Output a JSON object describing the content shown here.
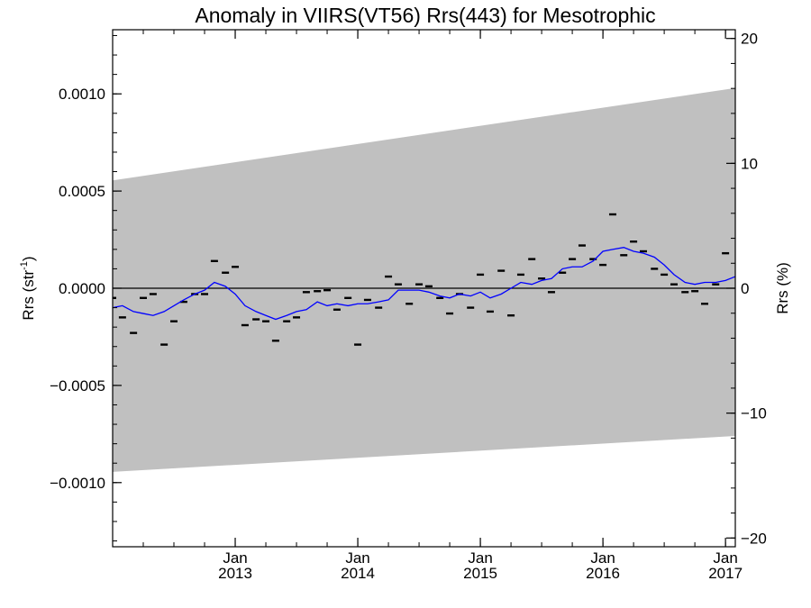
{
  "chart_data": {
    "type": "line",
    "title": "Anomaly in VIIRS(VT56) Rrs(443) for Mesotrophic",
    "ylabel_left": {
      "main": "Rrs (str",
      "sup": "-1",
      "tail": ")"
    },
    "ylabel_right": "Rrs (%)",
    "ylim_left": [
      -0.00133,
      0.00133
    ],
    "ylim_right": [
      -20.7,
      20.7
    ],
    "xlim": [
      2012.0,
      2017.08
    ],
    "x_ticks": [
      {
        "value": 2013.0,
        "month": "Jan",
        "year": "2013"
      },
      {
        "value": 2014.0,
        "month": "Jan",
        "year": "2014"
      },
      {
        "value": 2015.0,
        "month": "Jan",
        "year": "2015"
      },
      {
        "value": 2016.0,
        "month": "Jan",
        "year": "2016"
      },
      {
        "value": 2017.0,
        "month": "Jan",
        "year": "2017"
      }
    ],
    "y_ticks_left": [
      {
        "value": 0.001,
        "label": "0.0010"
      },
      {
        "value": 0.0005,
        "label": "0.0005"
      },
      {
        "value": 0.0,
        "label": "0.0000"
      },
      {
        "value": -0.0005,
        "label": "−0.0005"
      },
      {
        "value": -0.001,
        "label": "−0.0010"
      }
    ],
    "y_ticks_right": [
      {
        "value": 20,
        "label": "20"
      },
      {
        "value": 10,
        "label": "10"
      },
      {
        "value": 0,
        "label": "0"
      },
      {
        "value": -10,
        "label": "−10"
      },
      {
        "value": -20,
        "label": "−20"
      }
    ],
    "band": {
      "color": "#c0c0c0",
      "upper": [
        [
          2012.0,
          0.000555
        ],
        [
          2017.08,
          0.00103
        ]
      ],
      "lower": [
        [
          2012.0,
          -0.000945
        ],
        [
          2017.08,
          -0.00076
        ]
      ]
    },
    "zero_line": 0,
    "monthly_points": [
      [
        2012.0,
        -5e-05
      ],
      [
        2012.08,
        -0.00015
      ],
      [
        2012.17,
        -0.00023
      ],
      [
        2012.25,
        -5e-05
      ],
      [
        2012.33,
        -3e-05
      ],
      [
        2012.42,
        -0.00029
      ],
      [
        2012.5,
        -0.00017
      ],
      [
        2012.58,
        -7e-05
      ],
      [
        2012.67,
        -3e-05
      ],
      [
        2012.75,
        -3e-05
      ],
      [
        2012.83,
        0.00014
      ],
      [
        2012.92,
        8e-05
      ],
      [
        2013.0,
        0.00011
      ],
      [
        2013.08,
        -0.00019
      ],
      [
        2013.17,
        -0.00016
      ],
      [
        2013.25,
        -0.00017
      ],
      [
        2013.33,
        -0.00027
      ],
      [
        2013.42,
        -0.00017
      ],
      [
        2013.5,
        -0.00015
      ],
      [
        2013.58,
        -2e-05
      ],
      [
        2013.67,
        -1.5e-05
      ],
      [
        2013.75,
        -1e-05
      ],
      [
        2013.83,
        -0.00011
      ],
      [
        2013.92,
        -5e-05
      ],
      [
        2014.0,
        -0.00029
      ],
      [
        2014.08,
        -6e-05
      ],
      [
        2014.17,
        -0.0001
      ],
      [
        2014.25,
        6e-05
      ],
      [
        2014.33,
        2e-05
      ],
      [
        2014.42,
        -8e-05
      ],
      [
        2014.5,
        2e-05
      ],
      [
        2014.58,
        1e-05
      ],
      [
        2014.67,
        -5e-05
      ],
      [
        2014.75,
        -0.00013
      ],
      [
        2014.83,
        -3e-05
      ],
      [
        2014.92,
        -0.0001
      ],
      [
        2015.0,
        7e-05
      ],
      [
        2015.08,
        -0.00012
      ],
      [
        2015.17,
        9e-05
      ],
      [
        2015.25,
        -0.00014
      ],
      [
        2015.33,
        7e-05
      ],
      [
        2015.42,
        0.00015
      ],
      [
        2015.5,
        5e-05
      ],
      [
        2015.58,
        -2e-05
      ],
      [
        2015.67,
        8e-05
      ],
      [
        2015.75,
        0.00015
      ],
      [
        2015.83,
        0.00022
      ],
      [
        2015.92,
        0.00015
      ],
      [
        2016.0,
        0.00012
      ],
      [
        2016.08,
        0.00038
      ],
      [
        2016.17,
        0.00017
      ],
      [
        2016.25,
        0.00024
      ],
      [
        2016.33,
        0.00019
      ],
      [
        2016.42,
        0.0001
      ],
      [
        2016.5,
        7e-05
      ],
      [
        2016.58,
        2e-05
      ],
      [
        2016.67,
        -2e-05
      ],
      [
        2016.75,
        -1.5e-05
      ],
      [
        2016.83,
        -8e-05
      ],
      [
        2016.92,
        2e-05
      ],
      [
        2017.0,
        0.00018
      ]
    ],
    "running_mean": {
      "color": "#0000ff",
      "points": [
        [
          2012.0,
          -0.0001
        ],
        [
          2012.08,
          -9e-05
        ],
        [
          2012.17,
          -0.00012
        ],
        [
          2012.25,
          -0.00013
        ],
        [
          2012.33,
          -0.00014
        ],
        [
          2012.42,
          -0.00012
        ],
        [
          2012.5,
          -9e-05
        ],
        [
          2012.58,
          -6e-05
        ],
        [
          2012.67,
          -3e-05
        ],
        [
          2012.75,
          -1e-05
        ],
        [
          2012.83,
          3e-05
        ],
        [
          2012.92,
          1e-05
        ],
        [
          2013.0,
          -3e-05
        ],
        [
          2013.08,
          -9e-05
        ],
        [
          2013.17,
          -0.00012
        ],
        [
          2013.25,
          -0.00014
        ],
        [
          2013.33,
          -0.00016
        ],
        [
          2013.42,
          -0.00014
        ],
        [
          2013.5,
          -0.00012
        ],
        [
          2013.58,
          -0.00011
        ],
        [
          2013.67,
          -7e-05
        ],
        [
          2013.75,
          -9e-05
        ],
        [
          2013.83,
          -8e-05
        ],
        [
          2013.92,
          -9e-05
        ],
        [
          2014.0,
          -8e-05
        ],
        [
          2014.08,
          -8e-05
        ],
        [
          2014.17,
          -7e-05
        ],
        [
          2014.25,
          -6e-05
        ],
        [
          2014.33,
          -1e-05
        ],
        [
          2014.42,
          -1e-05
        ],
        [
          2014.5,
          -1e-05
        ],
        [
          2014.58,
          -2e-05
        ],
        [
          2014.67,
          -4e-05
        ],
        [
          2014.75,
          -5e-05
        ],
        [
          2014.83,
          -3e-05
        ],
        [
          2014.92,
          -4e-05
        ],
        [
          2015.0,
          -2e-05
        ],
        [
          2015.08,
          -5e-05
        ],
        [
          2015.17,
          -3e-05
        ],
        [
          2015.25,
          0.0
        ],
        [
          2015.33,
          3e-05
        ],
        [
          2015.42,
          2e-05
        ],
        [
          2015.5,
          4e-05
        ],
        [
          2015.58,
          5e-05
        ],
        [
          2015.67,
          0.0001
        ],
        [
          2015.75,
          0.00011
        ],
        [
          2015.83,
          0.00011
        ],
        [
          2015.92,
          0.00014
        ],
        [
          2016.0,
          0.00019
        ],
        [
          2016.08,
          0.0002
        ],
        [
          2016.17,
          0.00021
        ],
        [
          2016.25,
          0.00019
        ],
        [
          2016.33,
          0.00018
        ],
        [
          2016.42,
          0.00016
        ],
        [
          2016.5,
          0.00012
        ],
        [
          2016.58,
          7e-05
        ],
        [
          2016.67,
          3e-05
        ],
        [
          2016.75,
          2e-05
        ],
        [
          2016.83,
          3e-05
        ],
        [
          2016.92,
          3e-05
        ],
        [
          2017.0,
          4e-05
        ],
        [
          2017.08,
          6e-05
        ]
      ]
    },
    "grid": false,
    "legend": "none"
  }
}
